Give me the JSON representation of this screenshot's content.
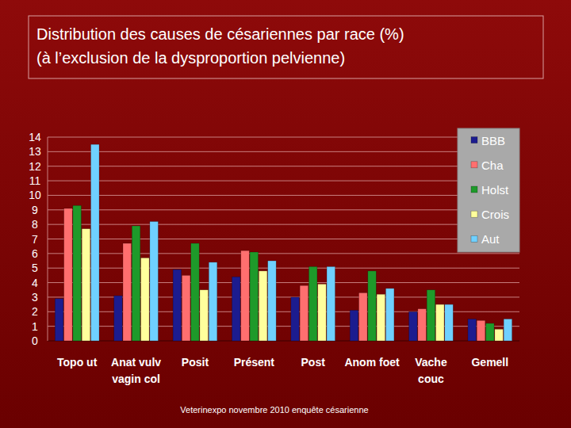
{
  "chart_data": {
    "type": "bar",
    "title": "Distribution des causes de césariennes par race (%)",
    "subtitle": "(à l’exclusion de la dysproportion pelvienne)",
    "categories": [
      "Topo ut",
      "Anat vulv\nvagin col",
      "Posit",
      "Présent",
      "Post",
      "Anom foet",
      "Vache\ncouc",
      "Gemell"
    ],
    "series": [
      {
        "name": "BBB",
        "color": "#1c1c8f",
        "values": [
          2.9,
          3.1,
          4.9,
          4.4,
          3.0,
          2.1,
          2.0,
          1.5
        ]
      },
      {
        "name": "Cha",
        "color": "#ff6f6f",
        "values": [
          9.1,
          6.7,
          4.5,
          6.2,
          3.8,
          3.3,
          2.2,
          1.4
        ]
      },
      {
        "name": "Holst",
        "color": "#1e9a2a",
        "values": [
          9.3,
          7.9,
          6.7,
          6.1,
          5.1,
          4.8,
          3.5,
          1.2
        ]
      },
      {
        "name": "Crois",
        "color": "#ffff9c",
        "values": [
          7.7,
          5.7,
          3.5,
          4.8,
          3.9,
          3.2,
          2.5,
          0.8
        ]
      },
      {
        "name": "Aut",
        "color": "#6fd0ff",
        "values": [
          13.5,
          8.2,
          5.4,
          5.5,
          5.1,
          3.6,
          2.5,
          1.5
        ]
      }
    ],
    "ylim": [
      0,
      14
    ],
    "yticks": [
      0,
      1,
      2,
      3,
      4,
      5,
      6,
      7,
      8,
      9,
      10,
      11,
      12,
      13,
      14
    ],
    "grid": true,
    "legend": "upper right",
    "annotations": [
      "Veterinexpo novembre 2010 enquête césarienne"
    ]
  }
}
